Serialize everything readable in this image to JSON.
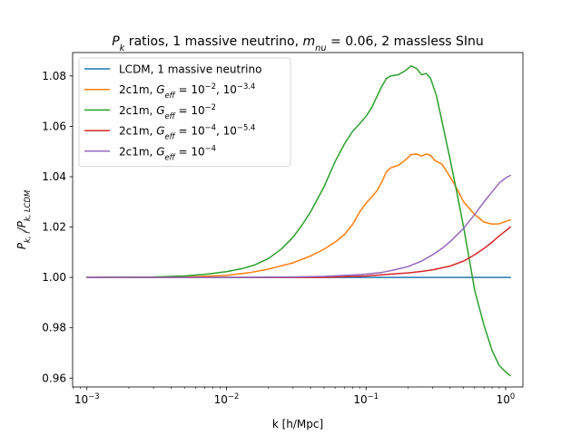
{
  "chart_data": {
    "type": "line",
    "title_parts": [
      {
        "t": "P",
        "i": true
      },
      {
        "t": "k",
        "sub": true,
        "i": true
      },
      {
        "t": " ratios, 1 massive neutrino, "
      },
      {
        "t": "m",
        "i": true
      },
      {
        "t": "nu",
        "sub": true,
        "i": true
      },
      {
        "t": " = 0.06, 2 massless SInu"
      }
    ],
    "xlabel": "k [h/Mpc]",
    "ylabel_parts": [
      {
        "t": "P",
        "i": true
      },
      {
        "t": "k, i",
        "sub": true,
        "i": true
      },
      {
        "t": "/",
        "i": true
      },
      {
        "t": "P",
        "i": true
      },
      {
        "t": "k, LCDM",
        "sub": true,
        "i": true
      }
    ],
    "xscale": "log",
    "xlim": [
      0.00079,
      1.33
    ],
    "ylim": [
      0.9565,
      1.0893
    ],
    "x_ticks": [
      {
        "value": 0.001,
        "base": "10",
        "exp": "−3"
      },
      {
        "value": 0.01,
        "base": "10",
        "exp": "−2"
      },
      {
        "value": 0.1,
        "base": "10",
        "exp": "−1"
      },
      {
        "value": 1,
        "base": "10",
        "exp": "0"
      }
    ],
    "y_ticks": [
      {
        "value": 0.96,
        "label": "0.96"
      },
      {
        "value": 0.98,
        "label": "0.98"
      },
      {
        "value": 1.0,
        "label": "1.00"
      },
      {
        "value": 1.02,
        "label": "1.02"
      },
      {
        "value": 1.04,
        "label": "1.04"
      },
      {
        "value": 1.06,
        "label": "1.06"
      },
      {
        "value": 1.08,
        "label": "1.08"
      }
    ],
    "grid": false,
    "legend_position": "upper-left",
    "series": [
      {
        "label_parts": [
          {
            "t": "LCDM, 1 massive neutrino"
          }
        ],
        "color": "#1f77b4",
        "points": [
          [
            0.001,
            1.0
          ],
          [
            0.01,
            1.0
          ],
          [
            0.1,
            1.0
          ],
          [
            1.08,
            1.0
          ]
        ]
      },
      {
        "label_parts": [
          {
            "t": "2c1m, "
          },
          {
            "t": "G",
            "i": true
          },
          {
            "t": "eff",
            "sub": true,
            "i": true
          },
          {
            "t": " = 10"
          },
          {
            "t": "−2",
            "sup": true
          },
          {
            "t": ", 10"
          },
          {
            "t": "−3.4",
            "sup": true
          }
        ],
        "color": "#ff7f0e",
        "points": [
          [
            0.001,
            1.0
          ],
          [
            0.003,
            1.0
          ],
          [
            0.006,
            1.0003
          ],
          [
            0.01,
            1.0008
          ],
          [
            0.015,
            1.002
          ],
          [
            0.02,
            1.0033
          ],
          [
            0.03,
            1.0058
          ],
          [
            0.04,
            1.0085
          ],
          [
            0.05,
            1.0112
          ],
          [
            0.06,
            1.014
          ],
          [
            0.07,
            1.017
          ],
          [
            0.08,
            1.021
          ],
          [
            0.09,
            1.026
          ],
          [
            0.1,
            1.0295
          ],
          [
            0.11,
            1.032
          ],
          [
            0.12,
            1.0345
          ],
          [
            0.13,
            1.038
          ],
          [
            0.14,
            1.042
          ],
          [
            0.15,
            1.0435
          ],
          [
            0.17,
            1.0445
          ],
          [
            0.19,
            1.0465
          ],
          [
            0.21,
            1.0488
          ],
          [
            0.23,
            1.049
          ],
          [
            0.25,
            1.0482
          ],
          [
            0.27,
            1.049
          ],
          [
            0.29,
            1.0485
          ],
          [
            0.31,
            1.0465
          ],
          [
            0.35,
            1.045
          ],
          [
            0.4,
            1.04
          ],
          [
            0.45,
            1.035
          ],
          [
            0.5,
            1.03
          ],
          [
            0.6,
            1.025
          ],
          [
            0.7,
            1.022
          ],
          [
            0.8,
            1.0212
          ],
          [
            0.9,
            1.0213
          ],
          [
            1.0,
            1.0222
          ],
          [
            1.08,
            1.0228
          ]
        ]
      },
      {
        "label_parts": [
          {
            "t": "2c1m, "
          },
          {
            "t": "G",
            "i": true
          },
          {
            "t": "eff",
            "sub": true,
            "i": true
          },
          {
            "t": " = 10"
          },
          {
            "t": "−2",
            "sup": true
          }
        ],
        "color": "#2ca02c",
        "points": [
          [
            0.001,
            1.0
          ],
          [
            0.003,
            1.0002
          ],
          [
            0.005,
            1.0006
          ],
          [
            0.007,
            1.0012
          ],
          [
            0.01,
            1.0023
          ],
          [
            0.013,
            1.0035
          ],
          [
            0.016,
            1.005
          ],
          [
            0.02,
            1.0075
          ],
          [
            0.025,
            1.0115
          ],
          [
            0.03,
            1.016
          ],
          [
            0.035,
            1.021
          ],
          [
            0.04,
            1.026
          ],
          [
            0.05,
            1.036
          ],
          [
            0.06,
            1.046
          ],
          [
            0.07,
            1.053
          ],
          [
            0.08,
            1.058
          ],
          [
            0.09,
            1.061
          ],
          [
            0.1,
            1.064
          ],
          [
            0.11,
            1.0675
          ],
          [
            0.12,
            1.072
          ],
          [
            0.13,
            1.076
          ],
          [
            0.14,
            1.079
          ],
          [
            0.15,
            1.08
          ],
          [
            0.17,
            1.0805
          ],
          [
            0.19,
            1.082
          ],
          [
            0.21,
            1.084
          ],
          [
            0.23,
            1.083
          ],
          [
            0.25,
            1.0805
          ],
          [
            0.27,
            1.081
          ],
          [
            0.29,
            1.079
          ],
          [
            0.32,
            1.072
          ],
          [
            0.35,
            1.062
          ],
          [
            0.4,
            1.047
          ],
          [
            0.45,
            1.033
          ],
          [
            0.5,
            1.02
          ],
          [
            0.55,
            1.007
          ],
          [
            0.6,
            0.995
          ],
          [
            0.7,
            0.981
          ],
          [
            0.8,
            0.971
          ],
          [
            0.9,
            0.965
          ],
          [
            1.0,
            0.9625
          ],
          [
            1.08,
            0.961
          ]
        ]
      },
      {
        "label_parts": [
          {
            "t": "2c1m, "
          },
          {
            "t": "G",
            "i": true
          },
          {
            "t": "eff",
            "sub": true,
            "i": true
          },
          {
            "t": " = 10"
          },
          {
            "t": "−4",
            "sup": true
          },
          {
            "t": ", 10"
          },
          {
            "t": "−5.4",
            "sup": true
          }
        ],
        "color": "#d62728",
        "points": [
          [
            0.001,
            1.0
          ],
          [
            0.01,
            1.0
          ],
          [
            0.05,
            1.0
          ],
          [
            0.1,
            1.0006
          ],
          [
            0.15,
            1.0013
          ],
          [
            0.2,
            1.0018
          ],
          [
            0.25,
            1.0024
          ],
          [
            0.3,
            1.003
          ],
          [
            0.4,
            1.0045
          ],
          [
            0.5,
            1.0065
          ],
          [
            0.6,
            1.009
          ],
          [
            0.7,
            1.0115
          ],
          [
            0.8,
            1.014
          ],
          [
            0.9,
            1.0165
          ],
          [
            1.0,
            1.0185
          ],
          [
            1.08,
            1.02
          ]
        ]
      },
      {
        "label_parts": [
          {
            "t": "2c1m, "
          },
          {
            "t": "G",
            "i": true
          },
          {
            "t": "eff",
            "sub": true,
            "i": true
          },
          {
            "t": " = 10"
          },
          {
            "t": "−4",
            "sup": true
          }
        ],
        "color": "#9467bd",
        "points": [
          [
            0.001,
            1.0
          ],
          [
            0.01,
            1.0
          ],
          [
            0.03,
            1.0002
          ],
          [
            0.05,
            1.0004
          ],
          [
            0.07,
            1.0008
          ],
          [
            0.1,
            1.0013
          ],
          [
            0.13,
            1.002
          ],
          [
            0.16,
            1.003
          ],
          [
            0.2,
            1.0043
          ],
          [
            0.25,
            1.0065
          ],
          [
            0.3,
            1.009
          ],
          [
            0.35,
            1.0115
          ],
          [
            0.4,
            1.0142
          ],
          [
            0.5,
            1.0195
          ],
          [
            0.6,
            1.025
          ],
          [
            0.7,
            1.03
          ],
          [
            0.8,
            1.034
          ],
          [
            0.9,
            1.0375
          ],
          [
            1.0,
            1.0395
          ],
          [
            1.08,
            1.0405
          ]
        ]
      }
    ]
  }
}
